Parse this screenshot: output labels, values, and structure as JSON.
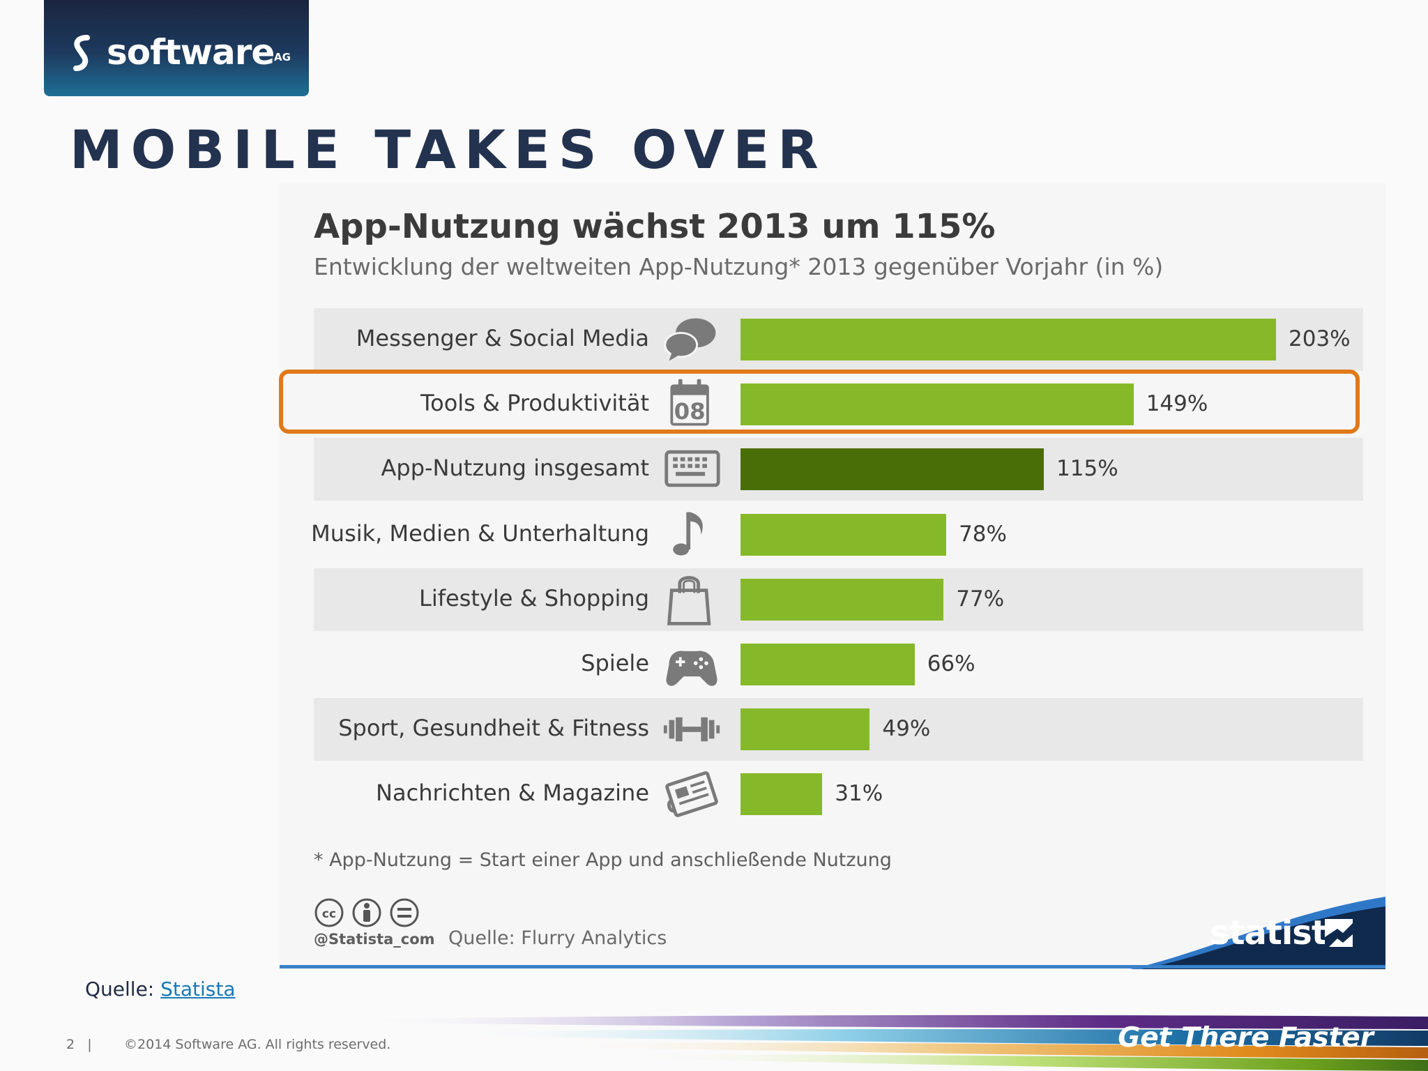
{
  "brand": {
    "logo_text": "software",
    "logo_suffix": "AG"
  },
  "slide_title": "MOBILE TAKES OVER",
  "chart_data": {
    "type": "bar",
    "orientation": "horizontal",
    "title": "App-Nutzung wächst 2013 um 115%",
    "subtitle": "Entwicklung der weltweiten App-Nutzung* 2013 gegenüber Vorjahr (in %)",
    "categories": [
      "Messenger & Social Media",
      "Tools & Produktivität",
      "App-Nutzung insgesamt",
      "Musik, Medien & Unterhaltung",
      "Lifestyle & Shopping",
      "Spiele",
      "Sport, Gesundheit & Fitness",
      "Nachrichten & Magazine"
    ],
    "values": [
      203,
      149,
      115,
      78,
      77,
      66,
      49,
      31
    ],
    "value_labels": [
      "203%",
      "149%",
      "115%",
      "78%",
      "77%",
      "66%",
      "49%",
      "31%"
    ],
    "icons": [
      "speech-bubbles-icon",
      "calendar-icon",
      "keyboard-icon",
      "music-note-icon",
      "shopping-bag-icon",
      "gamepad-icon",
      "dumbbell-icon",
      "newspaper-icon"
    ],
    "calendar_icon_text": "08",
    "highlighted_category": "Tools & Produktivität",
    "xlim": [
      0,
      203
    ],
    "bar_color": "#86b92a",
    "total_bar_color": "#4a6e07",
    "highlight_color": "#e0791a",
    "footnote": "* App-Nutzung = Start einer App und anschließende Nutzung",
    "credit_handle": "@Statista_com",
    "chart_source": "Quelle: Flurry Analytics",
    "publisher": "statista"
  },
  "source": {
    "prefix": "Quelle:",
    "link_text": "Statista"
  },
  "footer": {
    "page_number": "2",
    "separator": "|",
    "copyright": "©2014 Software AG. All rights reserved.",
    "tagline": "Get There Faster"
  }
}
